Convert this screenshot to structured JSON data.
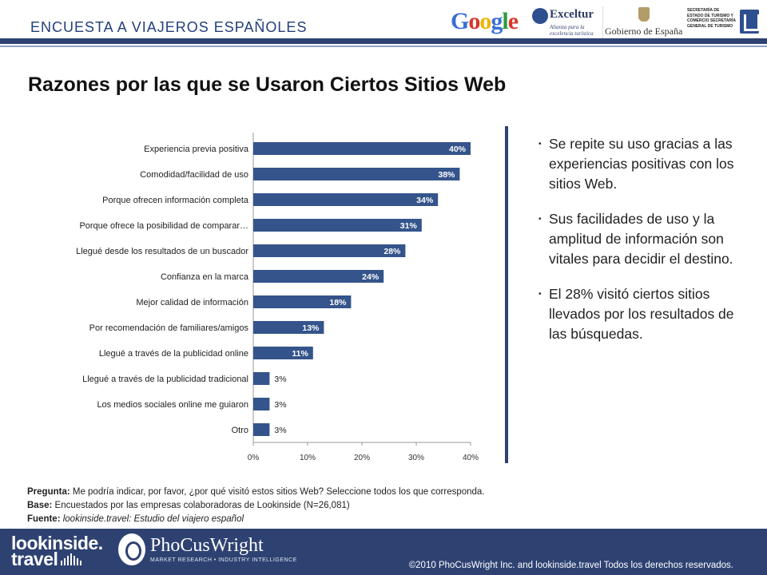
{
  "header": {
    "survey_label": "ENCUESTA  A  VIAJEROS ESPAÑOLES",
    "logos": {
      "google": "Google",
      "exceltur": "Exceltur",
      "exceltur_tag": "Alianza para la excelencia turística",
      "gobierno": "Gobierno de España",
      "secretaria": "SECRETARÍA DE ESTADO DE TURISMO Y COMERCIO SECRETARÍA GENERAL DE TURISMO"
    }
  },
  "title": "Razones por las que se Usaron Ciertos Sitios Web",
  "chart_data": {
    "type": "bar",
    "orientation": "horizontal",
    "categories": [
      "Experiencia previa positiva",
      "Comodidad/facilidad de uso",
      "Porque ofrecen información completa",
      "Porque ofrece la posibilidad de comparar…",
      "Llegué desde los resultados de un buscador",
      "Confianza en la marca",
      "Mejor calidad de información",
      "Por recomendación de familiares/amigos",
      "Llegué a través de la publicidad online",
      "Llegué a través de la publicidad tradicional",
      "Los medios sociales online me guiaron",
      "Otro"
    ],
    "values": [
      40,
      38,
      34,
      31,
      28,
      24,
      18,
      13,
      11,
      3,
      3,
      3
    ],
    "value_labels": [
      "40%",
      "38%",
      "34%",
      "31%",
      "28%",
      "24%",
      "18%",
      "13%",
      "11%",
      "3%",
      "3%",
      "3%"
    ],
    "xlim": [
      0,
      40
    ],
    "xticks": [
      "0%",
      "10%",
      "20%",
      "30%",
      "40%"
    ],
    "xtick_values": [
      0,
      10,
      20,
      30,
      40
    ],
    "bar_color": "#34548b",
    "grid": false,
    "legend": "none"
  },
  "bullets": [
    "Se repite su uso gracias a las experiencias positivas con los sitios Web.",
    "Sus facilidades de uso y la amplitud de información son vitales para decidir el destino.",
    "El 28% visitó ciertos sitios llevados por los resultados de las búsquedas."
  ],
  "notes": {
    "pregunta_label": "Pregunta:",
    "pregunta_text": " Me podría indicar, por favor, ¿por qué visitó estos sitios Web?  Seleccione todos los que corresponda.",
    "base_label": "Base:",
    "base_text": " Encuestados por las empresas colaboradoras de Lookinside (N=26,081)",
    "fuente_label": "Fuente:",
    "fuente_text": " lookinside.travel: Estudio del viajero español"
  },
  "footer": {
    "lookinside_line1": "lookinside.",
    "lookinside_line2": "travel",
    "phocuswright": "PhoCusWright",
    "phocuswright_tag": "MARKET RESEARCH • INDUSTRY INTELLIGENCE",
    "copyright": "©2010 PhoCusWright Inc. and lookinside.travel Todos los derechos reservados."
  },
  "colors": {
    "brand_navy": "#2e4272",
    "bar": "#34548b"
  }
}
